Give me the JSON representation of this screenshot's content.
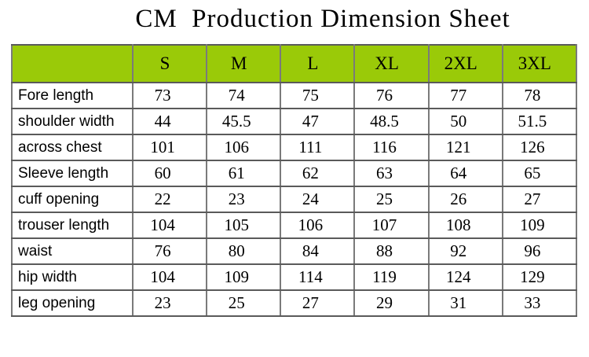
{
  "title": "CM  Production Dimension Sheet",
  "colors": {
    "header_bg": "#9aca08",
    "border_horizontal": "#5a5a5a",
    "border_vertical": "#7a7a7a",
    "text": "#000000"
  },
  "table": {
    "corner_label": "",
    "size_columns": [
      "S",
      "M",
      "L",
      "XL",
      "2XL",
      "3XL"
    ],
    "rows": [
      {
        "label": "Fore length",
        "values": [
          "73",
          "74",
          "75",
          "76",
          "77",
          "78"
        ]
      },
      {
        "label": "shoulder width",
        "values": [
          "44",
          "45.5",
          "47",
          "48.5",
          "50",
          "51.5"
        ]
      },
      {
        "label": "across chest",
        "values": [
          "101",
          "106",
          "111",
          "116",
          "121",
          "126"
        ]
      },
      {
        "label": "Sleeve length",
        "values": [
          "60",
          "61",
          "62",
          "63",
          "64",
          "65"
        ]
      },
      {
        "label": "cuff opening",
        "values": [
          "22",
          "23",
          "24",
          "25",
          "26",
          "27"
        ]
      },
      {
        "label": "trouser length",
        "values": [
          "104",
          "105",
          "106",
          "107",
          "108",
          "109"
        ]
      },
      {
        "label": "waist",
        "values": [
          "76",
          "80",
          "84",
          "88",
          "92",
          "96"
        ]
      },
      {
        "label": "hip width",
        "values": [
          "104",
          "109",
          "114",
          "119",
          "124",
          "129"
        ]
      },
      {
        "label": "leg opening",
        "values": [
          "23",
          "25",
          "27",
          "29",
          "31",
          "33"
        ]
      }
    ]
  }
}
